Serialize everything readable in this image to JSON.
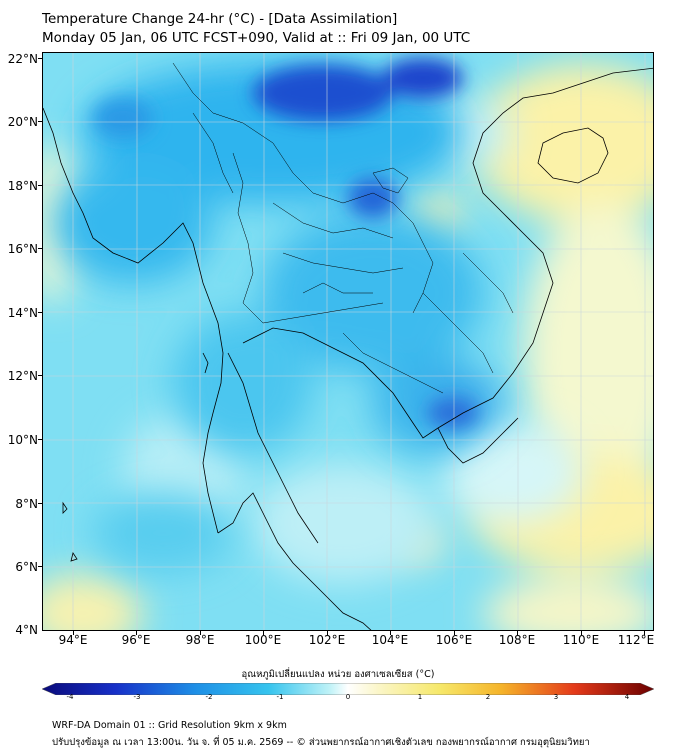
{
  "title": {
    "line1": "Temperature Change 24-hr (°C) - [Data Assimilation]",
    "line2": "Monday 05 Jan, 06 UTC FCST+090, Valid at :: Fri 09 Jan, 00 UTC"
  },
  "axes": {
    "lat_labels": [
      "22°N",
      "20°N",
      "18°N",
      "16°N",
      "14°N",
      "12°N",
      "10°N",
      "8°N",
      "6°N",
      "4°N"
    ],
    "lon_labels": [
      "94°E",
      "96°E",
      "98°E",
      "100°E",
      "102°E",
      "104°E",
      "106°E",
      "108°E",
      "110°E",
      "112°E"
    ]
  },
  "colorbar": {
    "label": "อุณหภูมิเปลี่ยนแปลง หน่วย องศาเซลเซียส (°C)",
    "ticks": [
      "-4",
      "-3",
      "-2",
      "-1",
      "0",
      "1",
      "2",
      "3",
      "4"
    ],
    "range": [
      -4,
      4
    ]
  },
  "footer": {
    "line1": "WRF-DA Domain 01 :: Grid Resolution 9km x 9km",
    "line2": "ปรับปรุงข้อมูล ณ เวลา 13:00น. วัน จ. ที่ 05 ม.ค. 2569 -- © ส่วนพยากรณ์อากาศเชิงตัวเลข กองพยากรณ์อากาศ กรมอุตุนิยมวิทยา"
  },
  "colors": {
    "cold_deep": "#1a2fb8",
    "cold": "#1e9ae6",
    "cool": "#33c8ee",
    "neutral": "#bff2f7",
    "warm": "#fbf2a8"
  }
}
